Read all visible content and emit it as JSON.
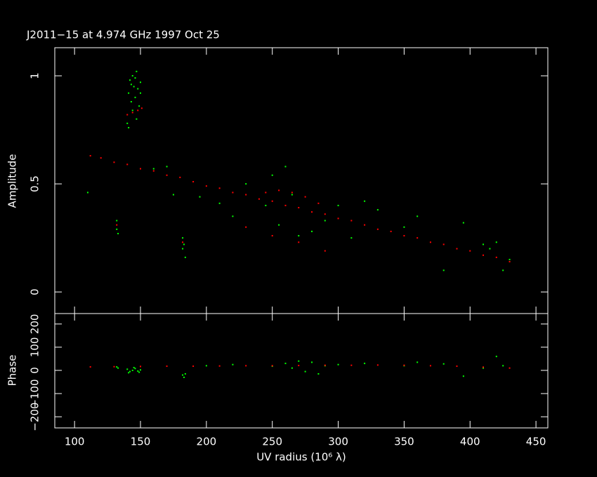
{
  "chart_data": [
    {
      "type": "scatter",
      "title": "J2011−15 at 4.974 GHz 1997 Oct 25",
      "y_label": "Amplitude",
      "xlim": [
        85,
        459
      ],
      "ylim": [
        -0.1,
        1.13
      ],
      "yticks": [
        0,
        0.5,
        1
      ],
      "series": [
        {
          "color": "#00ff00",
          "x": [
            110,
            132,
            132,
            133,
            140,
            141,
            142,
            143,
            144,
            145,
            146,
            147,
            148,
            149,
            150,
            141,
            144,
            147,
            150,
            143,
            146,
            160,
            170,
            175,
            182,
            182,
            183,
            184,
            195,
            210,
            220,
            230,
            245,
            250,
            255,
            260,
            265,
            270,
            280,
            290,
            300,
            310,
            320,
            330,
            350,
            360,
            380,
            395,
            410,
            415,
            420,
            425,
            430
          ],
          "values": [
            0.46,
            0.33,
            0.29,
            0.27,
            0.78,
            0.92,
            0.98,
            0.88,
            1.0,
            0.95,
            0.9,
            1.02,
            0.94,
            0.86,
            0.97,
            0.76,
            0.84,
            0.8,
            0.92,
            0.96,
            0.99,
            0.57,
            0.58,
            0.45,
            0.25,
            0.2,
            0.22,
            0.16,
            0.44,
            0.41,
            0.35,
            0.5,
            0.4,
            0.54,
            0.31,
            0.58,
            0.45,
            0.26,
            0.28,
            0.33,
            0.4,
            0.25,
            0.42,
            0.38,
            0.3,
            0.35,
            0.1,
            0.32,
            0.22,
            0.2,
            0.23,
            0.1,
            0.15
          ]
        },
        {
          "color": "#ff0000",
          "x": [
            112,
            120,
            130,
            140,
            150,
            160,
            170,
            180,
            190,
            200,
            210,
            220,
            230,
            240,
            250,
            260,
            270,
            280,
            290,
            300,
            310,
            320,
            330,
            340,
            350,
            360,
            370,
            380,
            390,
            400,
            410,
            420,
            430,
            245,
            255,
            265,
            275,
            285,
            230,
            250,
            270,
            290,
            140,
            144,
            148,
            151,
            182,
            132
          ],
          "values": [
            0.63,
            0.62,
            0.6,
            0.59,
            0.57,
            0.56,
            0.54,
            0.53,
            0.51,
            0.49,
            0.48,
            0.46,
            0.45,
            0.43,
            0.42,
            0.4,
            0.39,
            0.37,
            0.36,
            0.34,
            0.33,
            0.31,
            0.29,
            0.28,
            0.26,
            0.25,
            0.23,
            0.22,
            0.2,
            0.19,
            0.17,
            0.16,
            0.14,
            0.46,
            0.47,
            0.46,
            0.44,
            0.41,
            0.3,
            0.26,
            0.23,
            0.19,
            0.82,
            0.83,
            0.84,
            0.85,
            0.23,
            0.31
          ]
        }
      ]
    },
    {
      "type": "scatter",
      "y_label": "Phase",
      "x_label": "UV radius  (10⁶ λ)",
      "xlim": [
        85,
        459
      ],
      "xticks": [
        100,
        150,
        200,
        250,
        300,
        350,
        400,
        450
      ],
      "ylim": [
        -248,
        245
      ],
      "yticks": [
        {
          "value": -200,
          "label": "−200"
        },
        {
          "value": -100,
          "label": "−100"
        },
        0,
        100,
        200
      ],
      "series": [
        {
          "color": "#00ff00",
          "x": [
            132,
            133,
            140,
            142,
            144,
            146,
            148,
            150,
            141,
            145,
            149,
            182,
            183,
            184,
            200,
            220,
            250,
            260,
            265,
            270,
            275,
            280,
            285,
            290,
            300,
            320,
            350,
            360,
            380,
            395,
            410,
            420,
            425
          ],
          "values": [
            15,
            10,
            5,
            -5,
            0,
            8,
            -3,
            2,
            -10,
            12,
            -8,
            -20,
            -30,
            -15,
            20,
            25,
            18,
            30,
            10,
            40,
            -5,
            35,
            -15,
            20,
            25,
            30,
            20,
            35,
            28,
            -25,
            10,
            60,
            20
          ]
        },
        {
          "color": "#ff0000",
          "x": [
            112,
            130,
            150,
            170,
            190,
            210,
            230,
            250,
            270,
            290,
            310,
            330,
            350,
            370,
            390,
            410,
            430
          ],
          "values": [
            15,
            16,
            17,
            18,
            18,
            19,
            20,
            20,
            21,
            22,
            22,
            23,
            22,
            20,
            18,
            14,
            10
          ]
        }
      ]
    }
  ]
}
